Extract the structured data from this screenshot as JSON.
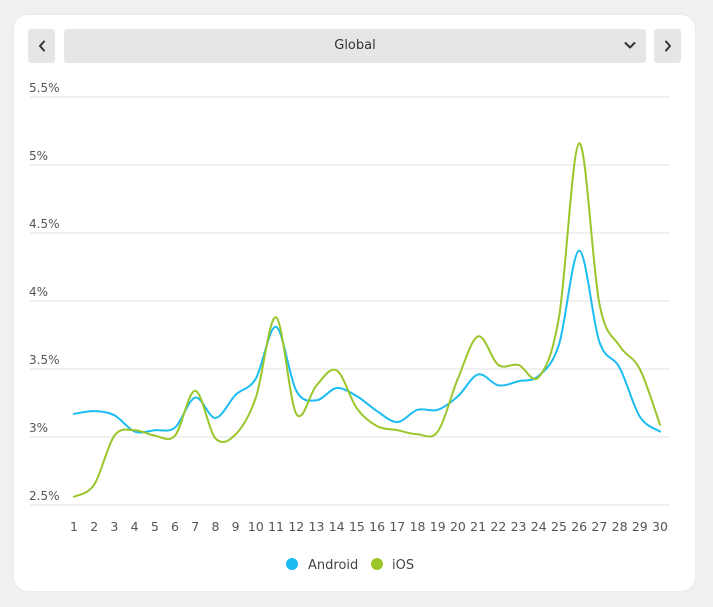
{
  "nav": {
    "prev_icon": "chevron-left-icon",
    "next_icon": "chevron-right-icon"
  },
  "region": {
    "selected": "Global",
    "icon": "chevron-down-icon"
  },
  "colors": {
    "android": "#1bbcf2",
    "ios": "#9ac62a",
    "grid": "#e3e3e3",
    "axis_text": "#555555"
  },
  "chart_data": {
    "type": "line",
    "title": "",
    "xlabel": "",
    "ylabel": "",
    "x": [
      1,
      2,
      3,
      4,
      5,
      6,
      7,
      8,
      9,
      10,
      11,
      12,
      13,
      14,
      15,
      16,
      17,
      18,
      19,
      20,
      21,
      22,
      23,
      24,
      25,
      26,
      27,
      28,
      29,
      30
    ],
    "ylim": [
      2.5,
      5.5
    ],
    "yticks": [
      2.5,
      3,
      3.5,
      4,
      4.5,
      5,
      5.5
    ],
    "ytick_labels": [
      "2.5%",
      "3%",
      "3.5%",
      "4%",
      "4.5%",
      "5%",
      "5.5%"
    ],
    "grid": true,
    "legend_position": "bottom-center",
    "series": [
      {
        "name": "Android",
        "color": "#1bbcf2",
        "values": [
          3.17,
          3.19,
          3.16,
          3.04,
          3.05,
          3.07,
          3.29,
          3.14,
          3.31,
          3.43,
          3.81,
          3.34,
          3.27,
          3.36,
          3.3,
          3.19,
          3.11,
          3.2,
          3.2,
          3.3,
          3.46,
          3.38,
          3.41,
          3.45,
          3.68,
          4.37,
          3.7,
          3.51,
          3.15,
          3.04
        ]
      },
      {
        "name": "iOS",
        "color": "#9ac62a",
        "values": [
          2.56,
          2.65,
          3.01,
          3.05,
          3.01,
          3.01,
          3.34,
          2.99,
          3.02,
          3.29,
          3.88,
          3.17,
          3.38,
          3.49,
          3.21,
          3.08,
          3.05,
          3.02,
          3.04,
          3.43,
          3.74,
          3.53,
          3.53,
          3.44,
          3.88,
          5.16,
          3.98,
          3.67,
          3.5,
          3.09
        ]
      }
    ]
  }
}
